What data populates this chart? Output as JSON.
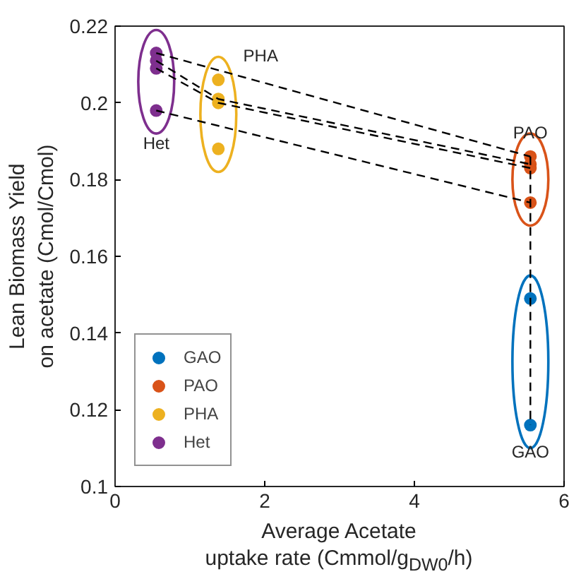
{
  "chart_data": {
    "type": "scatter",
    "xlabel": "Average Acetate\nuptake rate (Cmmol/g$_{DW0}$/h)",
    "ylabel": "Lean Biomass Yield\non acetate (Cmol/Cmol)",
    "xlim": [
      0,
      6
    ],
    "xticks": [
      0,
      2,
      4,
      6
    ],
    "ylim": [
      0.1,
      0.22
    ],
    "yticks": [
      0.1,
      0.12,
      0.14,
      0.16,
      0.18,
      0.2,
      0.22
    ],
    "grid": false,
    "legend": "bottom left",
    "marker": "circle",
    "series": [
      {
        "name": "GAO",
        "color": "#0072bd",
        "x": [
          5.55,
          5.55
        ],
        "values": [
          0.149,
          0.116
        ]
      },
      {
        "name": "PAO",
        "color": "#d95319",
        "x": [
          5.55,
          5.55,
          5.55,
          5.55
        ],
        "values": [
          0.186,
          0.184,
          0.183,
          0.174
        ]
      },
      {
        "name": "PHA",
        "color": "#edb120",
        "x": [
          1.38,
          1.38,
          1.38,
          1.38
        ],
        "values": [
          0.206,
          0.201,
          0.2,
          0.188
        ]
      },
      {
        "name": "Het",
        "color": "#7e2f8e",
        "x": [
          0.55,
          0.55,
          0.55,
          0.55
        ],
        "values": [
          0.213,
          0.211,
          0.209,
          0.198
        ]
      },
      {
        "type": "line",
        "color": "#000000",
        "line_style": "dashed",
        "marker": "none",
        "x": [
          0.55,
          5.55
        ],
        "values": [
          0.213,
          0.186
        ]
      },
      {
        "type": "line",
        "color": "#000000",
        "line_style": "dashed",
        "marker": "none",
        "x": [
          0.55,
          1.38,
          5.55
        ],
        "values": [
          0.211,
          0.201,
          0.184
        ]
      },
      {
        "type": "line",
        "color": "#000000",
        "line_style": "dashed",
        "marker": "none",
        "x": [
          0.55,
          1.38,
          5.55
        ],
        "values": [
          0.209,
          0.2,
          0.183
        ]
      },
      {
        "type": "line",
        "color": "#000000",
        "line_style": "dashed",
        "marker": "none",
        "x": [
          0.55,
          5.55
        ],
        "values": [
          0.198,
          0.174
        ]
      },
      {
        "type": "line",
        "color": "#000000",
        "line_style": "dashed",
        "marker": "none",
        "x": [
          5.55,
          5.55
        ],
        "values": [
          0.186,
          0.116
        ]
      }
    ],
    "annotations": [
      {
        "text": "PHA",
        "x": 1.38,
        "y": 0.206
      },
      {
        "text": "Het",
        "x": 0.55,
        "y": 0.198
      },
      {
        "text": "PAO",
        "x": 5.55,
        "y": 0.186
      },
      {
        "text": "GAO",
        "x": 5.55,
        "y": 0.116
      }
    ]
  }
}
